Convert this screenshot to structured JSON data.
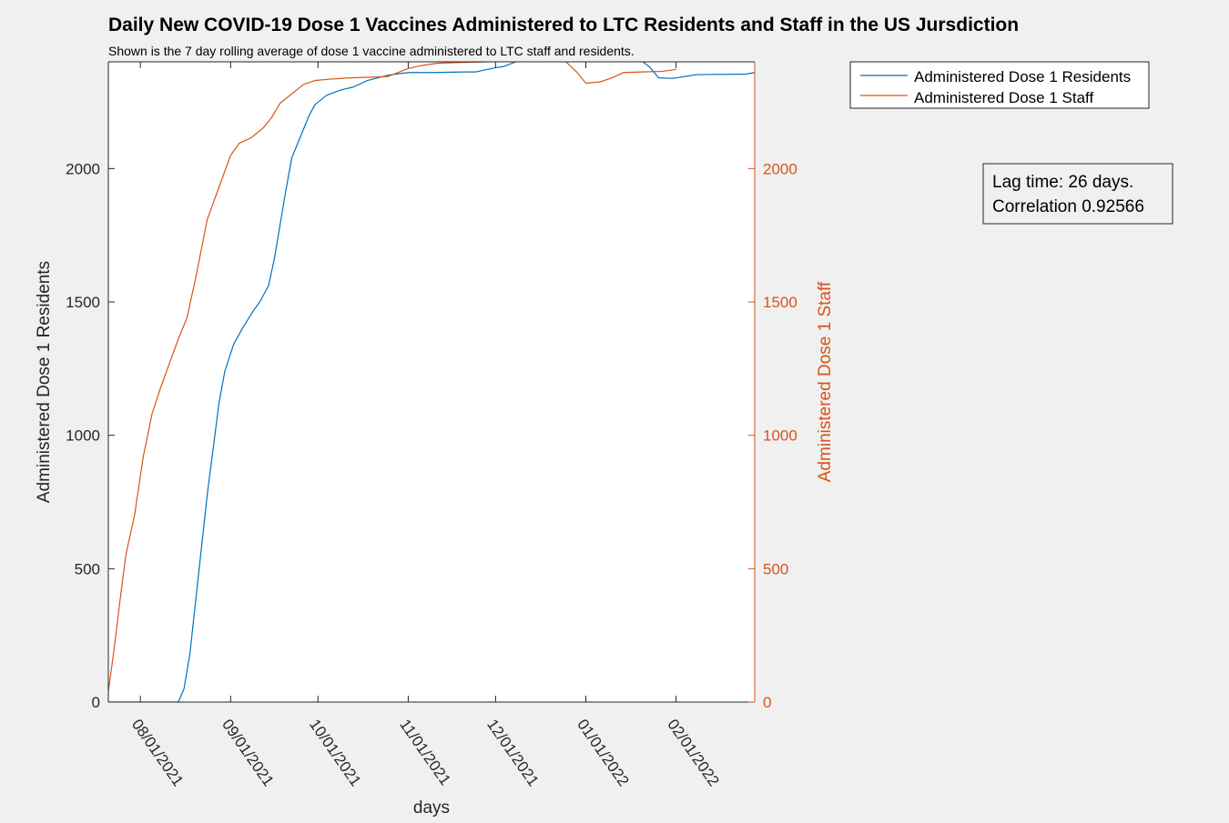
{
  "colors": {
    "background": "#f0f0f0",
    "axes_face": "#ffffff",
    "axis_ink": "#262626",
    "residents": "#0072bd",
    "staff": "#d95319"
  },
  "annotation": {
    "line1": "Lag time: 26 days.",
    "line2": "Correlation 0.92566"
  },
  "chart_data": {
    "type": "line",
    "title": "Daily New COVID-19 Dose 1 Vaccines Administered to LTC Residents and Staff in the US Jursdiction",
    "subtitle": "Shown is the 7 day rolling average of dose 1 vaccine administered to LTC staff and residents.",
    "xlabel": "days",
    "ylabel_left": "Administered Dose 1 Residents",
    "ylabel_right": "Administered Dose 1 Staff",
    "xlim": [
      "2021-07-21",
      "2022-02-28"
    ],
    "ylim_left": [
      0,
      2400
    ],
    "ylim_right": [
      0,
      2400
    ],
    "y_ticks_left": [
      0,
      500,
      1000,
      1500,
      2000
    ],
    "y_ticks_right": [
      0,
      500,
      1000,
      1500,
      2000
    ],
    "x_ticks": [
      {
        "date": "2021-08-01",
        "label": "08/01/2021"
      },
      {
        "date": "2021-09-01",
        "label": "09/01/2021"
      },
      {
        "date": "2021-10-01",
        "label": "10/01/2021"
      },
      {
        "date": "2021-11-01",
        "label": "11/01/2021"
      },
      {
        "date": "2021-12-01",
        "label": "12/01/2021"
      },
      {
        "date": "2022-01-01",
        "label": "01/01/2022"
      },
      {
        "date": "2022-02-01",
        "label": "02/01/2022"
      }
    ],
    "grid": false,
    "legend_position": "top-right (outside axes)",
    "series": [
      {
        "name": "Administered Dose 1 Residents",
        "axis": "left",
        "color": "#0072bd",
        "points": [
          [
            "2021-07-21",
            0
          ],
          [
            "2021-07-25",
            0
          ],
          [
            "2021-07-30",
            0
          ],
          [
            "2021-08-05",
            0
          ],
          [
            "2021-08-10",
            0
          ],
          [
            "2021-08-14",
            0
          ],
          [
            "2021-08-16",
            50
          ],
          [
            "2021-08-18",
            180
          ],
          [
            "2021-08-20",
            380
          ],
          [
            "2021-08-22",
            580
          ],
          [
            "2021-08-24",
            780
          ],
          [
            "2021-08-26",
            950
          ],
          [
            "2021-08-28",
            1120
          ],
          [
            "2021-08-30",
            1240
          ],
          [
            "2021-09-02",
            1340
          ],
          [
            "2021-09-05",
            1400
          ],
          [
            "2021-09-09",
            1470
          ],
          [
            "2021-09-11",
            1500
          ],
          [
            "2021-09-14",
            1560
          ],
          [
            "2021-09-16",
            1660
          ],
          [
            "2021-09-18",
            1790
          ],
          [
            "2021-09-20",
            1920
          ],
          [
            "2021-09-22",
            2040
          ],
          [
            "2021-09-25",
            2120
          ],
          [
            "2021-09-28",
            2200
          ],
          [
            "2021-09-30",
            2240
          ],
          [
            "2021-10-04",
            2275
          ],
          [
            "2021-10-09",
            2295
          ],
          [
            "2021-10-13",
            2305
          ],
          [
            "2021-10-18",
            2330
          ],
          [
            "2021-10-25",
            2350
          ],
          [
            "2021-11-01",
            2360
          ],
          [
            "2021-11-10",
            2360
          ],
          [
            "2021-11-20",
            2362
          ],
          [
            "2021-11-24",
            2362
          ],
          [
            "2021-12-01",
            2378
          ],
          [
            "2021-12-04",
            2383
          ],
          [
            "2021-12-09",
            2405
          ],
          [
            "2021-12-15",
            2403
          ],
          [
            "2021-12-26",
            2405
          ],
          [
            "2022-01-01",
            2405
          ],
          [
            "2022-01-15",
            2405
          ],
          [
            "2022-01-20",
            2405
          ],
          [
            "2022-01-23",
            2380
          ],
          [
            "2022-01-26",
            2340
          ],
          [
            "2022-01-31",
            2338
          ],
          [
            "2022-02-08",
            2352
          ],
          [
            "2022-02-25",
            2354
          ],
          [
            "2022-02-28",
            2360
          ]
        ]
      },
      {
        "name": "Administered Dose 1 Staff",
        "axis": "right",
        "color": "#d95319",
        "points": [
          [
            "2021-07-21",
            40
          ],
          [
            "2021-07-23",
            200
          ],
          [
            "2021-07-25",
            380
          ],
          [
            "2021-07-27",
            550
          ],
          [
            "2021-07-30",
            700
          ],
          [
            "2021-08-02",
            920
          ],
          [
            "2021-08-05",
            1080
          ],
          [
            "2021-08-08",
            1180
          ],
          [
            "2021-08-11",
            1270
          ],
          [
            "2021-08-14",
            1360
          ],
          [
            "2021-08-17",
            1440
          ],
          [
            "2021-08-20",
            1590
          ],
          [
            "2021-08-24",
            1810
          ],
          [
            "2021-08-28",
            1930
          ],
          [
            "2021-09-01",
            2050
          ],
          [
            "2021-09-04",
            2095
          ],
          [
            "2021-09-08",
            2115
          ],
          [
            "2021-09-12",
            2150
          ],
          [
            "2021-09-15",
            2190
          ],
          [
            "2021-09-18",
            2245
          ],
          [
            "2021-09-22",
            2280
          ],
          [
            "2021-09-26",
            2315
          ],
          [
            "2021-09-30",
            2330
          ],
          [
            "2021-10-05",
            2335
          ],
          [
            "2021-10-12",
            2340
          ],
          [
            "2021-10-18",
            2342
          ],
          [
            "2021-10-25",
            2345
          ],
          [
            "2021-11-01",
            2375
          ],
          [
            "2021-11-05",
            2385
          ],
          [
            "2021-11-11",
            2395
          ],
          [
            "2021-11-20",
            2398
          ],
          [
            "2021-11-28",
            2400
          ],
          [
            "2021-12-10",
            2402
          ],
          [
            "2021-12-20",
            2402
          ],
          [
            "2021-12-25",
            2402
          ],
          [
            "2021-12-29",
            2360
          ],
          [
            "2022-01-01",
            2320
          ],
          [
            "2022-01-06",
            2325
          ],
          [
            "2022-01-10",
            2340
          ],
          [
            "2022-01-14",
            2360
          ],
          [
            "2022-01-20",
            2362
          ],
          [
            "2022-01-27",
            2364
          ],
          [
            "2022-01-31",
            2370
          ],
          [
            "2022-02-01",
            2372
          ]
        ]
      }
    ]
  }
}
